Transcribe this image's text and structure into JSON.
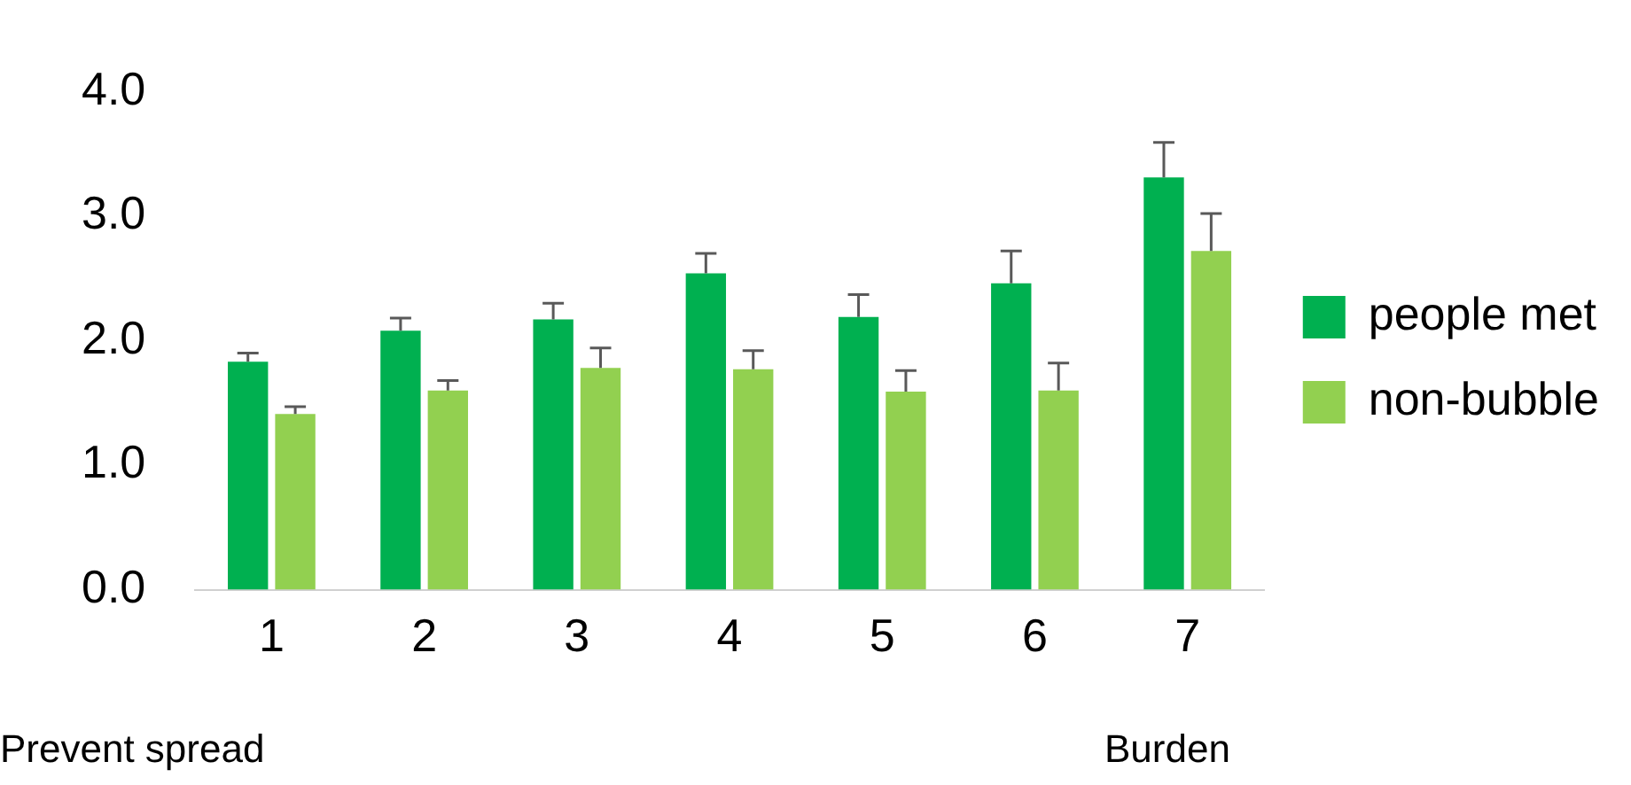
{
  "chart_data": {
    "type": "bar",
    "categories": [
      "1",
      "2",
      "3",
      "4",
      "5",
      "6",
      "7"
    ],
    "series": [
      {
        "name": "people met",
        "color": "#00b050",
        "values": [
          1.83,
          2.08,
          2.17,
          2.54,
          2.19,
          2.46,
          3.31
        ],
        "errors": [
          [
            1.83,
            1.9
          ],
          [
            2.08,
            2.18
          ],
          [
            2.17,
            2.3
          ],
          [
            2.54,
            2.7
          ],
          [
            2.19,
            2.37
          ],
          [
            2.46,
            2.72
          ],
          [
            3.31,
            3.59
          ]
        ]
      },
      {
        "name": "non-bubble",
        "color": "#92d050",
        "values": [
          1.41,
          1.6,
          1.78,
          1.77,
          1.59,
          1.6,
          2.72
        ],
        "errors": [
          [
            1.41,
            1.47
          ],
          [
            1.6,
            1.68
          ],
          [
            1.78,
            1.94
          ],
          [
            1.77,
            1.92
          ],
          [
            1.59,
            1.76
          ],
          [
            1.6,
            1.82
          ],
          [
            2.72,
            3.02
          ]
        ]
      }
    ],
    "ylim": [
      0,
      4
    ],
    "yticks": [
      {
        "value": 0,
        "label": "0.0"
      },
      {
        "value": 1,
        "label": "1.0"
      },
      {
        "value": 2,
        "label": "2.0"
      },
      {
        "value": 3,
        "label": "3.0"
      },
      {
        "value": 4,
        "label": "4.0"
      }
    ],
    "grid": false,
    "legend": "right",
    "annotations": [
      "Prevent spread",
      "Burden"
    ]
  }
}
